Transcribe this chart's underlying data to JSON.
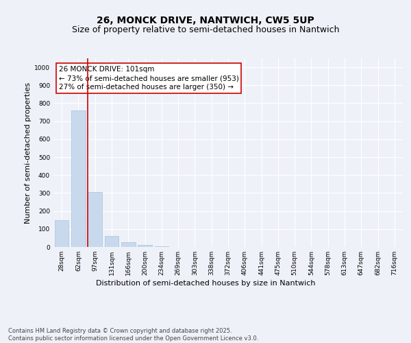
{
  "title_line1": "26, MONCK DRIVE, NANTWICH, CW5 5UP",
  "title_line2": "Size of property relative to semi-detached houses in Nantwich",
  "xlabel": "Distribution of semi-detached houses by size in Nantwich",
  "ylabel": "Number of semi-detached properties",
  "categories": [
    "28sqm",
    "62sqm",
    "97sqm",
    "131sqm",
    "166sqm",
    "200sqm",
    "234sqm",
    "269sqm",
    "303sqm",
    "338sqm",
    "372sqm",
    "406sqm",
    "441sqm",
    "475sqm",
    "510sqm",
    "544sqm",
    "578sqm",
    "613sqm",
    "647sqm",
    "682sqm",
    "716sqm"
  ],
  "values": [
    150,
    760,
    305,
    60,
    28,
    10,
    5,
    0,
    0,
    0,
    0,
    0,
    0,
    0,
    0,
    0,
    0,
    0,
    0,
    0,
    0
  ],
  "bar_color": "#c8d9ed",
  "bar_edge_color": "#a8c0dc",
  "vline_color": "#cc0000",
  "vline_x_idx": 2,
  "annotation_text": "26 MONCK DRIVE: 101sqm\n← 73% of semi-detached houses are smaller (953)\n27% of semi-detached houses are larger (350) →",
  "annotation_box_color": "#ffffff",
  "annotation_box_edge": "#cc0000",
  "ylim": [
    0,
    1050
  ],
  "yticks": [
    0,
    100,
    200,
    300,
    400,
    500,
    600,
    700,
    800,
    900,
    1000
  ],
  "footnote": "Contains HM Land Registry data © Crown copyright and database right 2025.\nContains public sector information licensed under the Open Government Licence v3.0.",
  "bg_color": "#eef2f8",
  "plot_bg_color": "#eef2f8",
  "grid_color": "#ffffff",
  "title_fontsize": 10,
  "subtitle_fontsize": 9,
  "axis_label_fontsize": 8,
  "tick_fontsize": 6.5,
  "annotation_fontsize": 7.5,
  "footnote_fontsize": 6
}
